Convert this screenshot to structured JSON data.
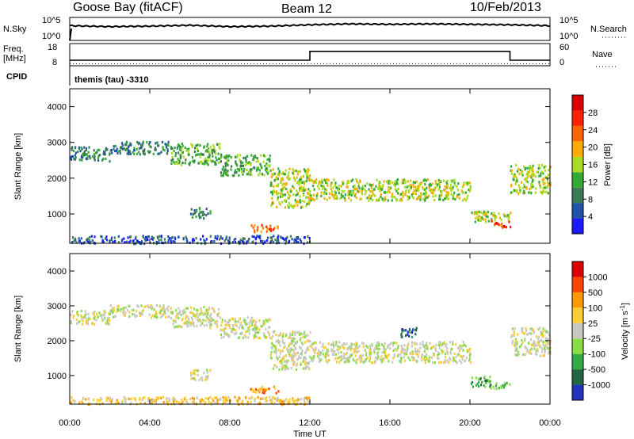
{
  "header": {
    "station": "Goose Bay (fitACF)",
    "beam": "Beam 12",
    "date": "10/Feb/2013"
  },
  "noise_panel": {
    "left_label": "N.Sky",
    "left_ticks": [
      "10^5",
      "10^0"
    ],
    "right_label": "N.Search",
    "right_ticks": [
      "10^5",
      "10^0"
    ]
  },
  "freq_panel": {
    "left_label_line1": "Freq.",
    "left_label_line2": "[MHz]",
    "left_ticks": [
      "18",
      "8"
    ],
    "right_label": "Nave",
    "right_ticks": [
      "60",
      "0"
    ],
    "cpid_label": "CPID",
    "cpid_value": "themis (tau) -3310"
  },
  "colors": {
    "power_scale": [
      "#1a1aff",
      "#2255aa",
      "#3a7a55",
      "#33aa33",
      "#aadd22",
      "#ffaa00",
      "#ff6600",
      "#ff2200",
      "#dd0000"
    ],
    "velocity_scale": [
      "#2233bb",
      "#226644",
      "#33aa44",
      "#88dd44",
      "#c8c8c0",
      "#ffcc33",
      "#ff9900",
      "#ff4400",
      "#dd0000"
    ]
  },
  "chart_data": [
    {
      "type": "line",
      "name": "noise-strip",
      "ylabel_left": "N.Sky",
      "ylabel_right": "N.Search",
      "x": [
        "00:00",
        "02:00",
        "04:00",
        "06:00",
        "08:00",
        "10:00",
        "12:00",
        "14:00",
        "16:00",
        "18:00",
        "20:00",
        "22:00",
        "24:00"
      ],
      "series": [
        {
          "values": [
            3.2,
            3.0,
            3.1,
            3.3,
            3.0,
            3.1,
            3.4,
            3.6,
            3.5,
            3.6,
            3.5,
            3.4,
            3.2
          ]
        }
      ],
      "ylim": [
        0,
        5
      ]
    },
    {
      "type": "line",
      "name": "freq-nave-strip",
      "ylabel_left": "Freq. [MHz]",
      "ylabel_right": "Nave",
      "x": [
        "00:00",
        "12:00",
        "12:00",
        "22:00",
        "22:00",
        "24:00"
      ],
      "series": [
        {
          "values": [
            10.5,
            10.5,
            14.5,
            14.5,
            10.5,
            10.5
          ]
        },
        {
          "values": [
            10,
            10,
            10,
            10,
            10,
            10
          ]
        }
      ],
      "ylim": [
        8,
        18
      ]
    },
    {
      "type": "heatmap",
      "name": "power-panel",
      "ylabel": "Slant Range [km]",
      "xlabel": "Time UT",
      "yticks": [
        1000,
        2000,
        3000,
        4000
      ],
      "xticks": [
        "00:00",
        "04:00",
        "08:00",
        "12:00",
        "16:00",
        "20:00",
        "00:00"
      ],
      "xlim_hours": [
        0,
        24
      ],
      "ylim_km": [
        180,
        4500
      ],
      "colorbar_label": "Power [dB]",
      "colorbar_ticks": [
        28,
        24,
        20,
        16,
        12,
        8,
        4
      ],
      "echo_regions": [
        {
          "t_start": 0.0,
          "t_end": 2.0,
          "r_low": 2500,
          "r_high": 2900,
          "level": 2
        },
        {
          "t_start": 2.0,
          "t_end": 5.0,
          "r_low": 2700,
          "r_high": 3050,
          "level": 2
        },
        {
          "t_start": 5.0,
          "t_end": 7.5,
          "r_low": 2400,
          "r_high": 3000,
          "level": 3
        },
        {
          "t_start": 7.5,
          "t_end": 10.0,
          "r_low": 2100,
          "r_high": 2700,
          "level": 3
        },
        {
          "t_start": 10.0,
          "t_end": 12.0,
          "r_low": 1200,
          "r_high": 2300,
          "level": 4
        },
        {
          "t_start": 12.0,
          "t_end": 20.0,
          "r_low": 1400,
          "r_high": 2000,
          "level": 4
        },
        {
          "t_start": 20.0,
          "t_end": 22.0,
          "r_low": 800,
          "r_high": 1100,
          "level": 4
        },
        {
          "t_start": 22.0,
          "t_end": 24.0,
          "r_low": 1600,
          "r_high": 2400,
          "level": 4
        },
        {
          "t_start": 9.0,
          "t_end": 10.4,
          "r_low": 520,
          "r_high": 720,
          "level": 6
        },
        {
          "t_start": 6.0,
          "t_end": 7.0,
          "r_low": 900,
          "r_high": 1200,
          "level": 2
        },
        {
          "t_start": 21.0,
          "t_end": 22.0,
          "r_low": 650,
          "r_high": 850,
          "level": 7
        },
        {
          "t_start": 0.0,
          "t_end": 12.0,
          "r_low": 200,
          "r_high": 420,
          "level": 1
        }
      ]
    },
    {
      "type": "heatmap",
      "name": "velocity-panel",
      "ylabel": "Slant Range [km]",
      "xlabel": "Time UT",
      "yticks": [
        1000,
        2000,
        3000,
        4000
      ],
      "xticks": [
        "00:00",
        "04:00",
        "08:00",
        "12:00",
        "16:00",
        "20:00",
        "00:00"
      ],
      "xlim_hours": [
        0,
        24
      ],
      "ylim_km": [
        180,
        4500
      ],
      "colorbar_label": "Velocity [m s^-1]",
      "colorbar_ticks": [
        1000,
        500,
        100,
        25,
        -25,
        -100,
        -500,
        -1000
      ],
      "echo_regions": [
        {
          "t_start": 0.0,
          "t_end": 2.0,
          "r_low": 2500,
          "r_high": 2900,
          "level": 4
        },
        {
          "t_start": 2.0,
          "t_end": 5.0,
          "r_low": 2700,
          "r_high": 3050,
          "level": 4
        },
        {
          "t_start": 5.0,
          "t_end": 7.5,
          "r_low": 2400,
          "r_high": 3000,
          "level": 4
        },
        {
          "t_start": 7.5,
          "t_end": 10.0,
          "r_low": 2100,
          "r_high": 2700,
          "level": 4
        },
        {
          "t_start": 10.0,
          "t_end": 12.0,
          "r_low": 1200,
          "r_high": 2300,
          "level": 4
        },
        {
          "t_start": 12.0,
          "t_end": 20.0,
          "r_low": 1400,
          "r_high": 2000,
          "level": 4
        },
        {
          "t_start": 22.0,
          "t_end": 24.0,
          "r_low": 1600,
          "r_high": 2400,
          "level": 4
        },
        {
          "t_start": 9.0,
          "t_end": 10.4,
          "r_low": 520,
          "r_high": 720,
          "level": 6
        },
        {
          "t_start": 16.5,
          "t_end": 17.3,
          "r_low": 2100,
          "r_high": 2400,
          "level": 1
        },
        {
          "t_start": 20.0,
          "t_end": 21.0,
          "r_low": 700,
          "r_high": 1000,
          "level": 2
        },
        {
          "t_start": 21.0,
          "t_end": 22.0,
          "r_low": 650,
          "r_high": 850,
          "level": 3
        },
        {
          "t_start": 6.0,
          "t_end": 7.0,
          "r_low": 900,
          "r_high": 1200,
          "level": 4
        },
        {
          "t_start": 0.0,
          "t_end": 12.0,
          "r_low": 200,
          "r_high": 420,
          "level": 5
        }
      ]
    }
  ],
  "xaxis": {
    "label": "Time UT",
    "ticks": [
      "00:00",
      "04:00",
      "08:00",
      "12:00",
      "16:00",
      "20:00",
      "00:00"
    ]
  },
  "panel_ylabel": "Slant Range [km]",
  "power_cbar": {
    "label": "Power [dB]",
    "ticks": [
      "28",
      "24",
      "20",
      "16",
      "12",
      "8",
      "4"
    ]
  },
  "velocity_cbar": {
    "label": "Velocity [m s",
    "label_sup": "-1",
    "label_end": "]",
    "ticks": [
      "1000",
      "500",
      "100",
      "25",
      "-25",
      "-100",
      "-500",
      "-1000"
    ]
  }
}
